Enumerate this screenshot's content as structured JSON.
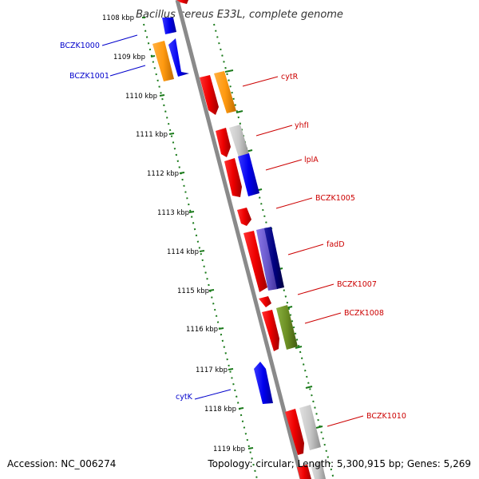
{
  "title": "Bacillus cereus E33L, complete genome",
  "footer": {
    "accession": "Accession: NC_006274",
    "summary": "Topology: circular; Length: 5,300,915 bp; Genes: 5,269"
  },
  "colors": {
    "backbone": "#8a8a8a",
    "ticks": "#1a7a1a",
    "reverse_label": "#0000cc",
    "forward_label": "#cc0000"
  },
  "scale_labels": [
    "1108 kbp",
    "1109 kbp",
    "1110 kbp",
    "1111 kbp",
    "1112 kbp",
    "1113 kbp",
    "1114 kbp",
    "1115 kbp",
    "1116 kbp",
    "1117 kbp",
    "1118 kbp",
    "1119 kbp"
  ],
  "gene_labels": [
    {
      "text": "BCZK1000",
      "strand": "reverse"
    },
    {
      "text": "BCZK1001",
      "strand": "reverse"
    },
    {
      "text": "cytR",
      "strand": "forward"
    },
    {
      "text": "yhfI",
      "strand": "forward"
    },
    {
      "text": "lplA",
      "strand": "forward"
    },
    {
      "text": "BCZK1005",
      "strand": "forward"
    },
    {
      "text": "fadD",
      "strand": "forward"
    },
    {
      "text": "BCZK1007",
      "strand": "forward"
    },
    {
      "text": "BCZK1008",
      "strand": "forward"
    },
    {
      "text": "cytK",
      "strand": "reverse"
    },
    {
      "text": "BCZK1010",
      "strand": "forward"
    }
  ]
}
